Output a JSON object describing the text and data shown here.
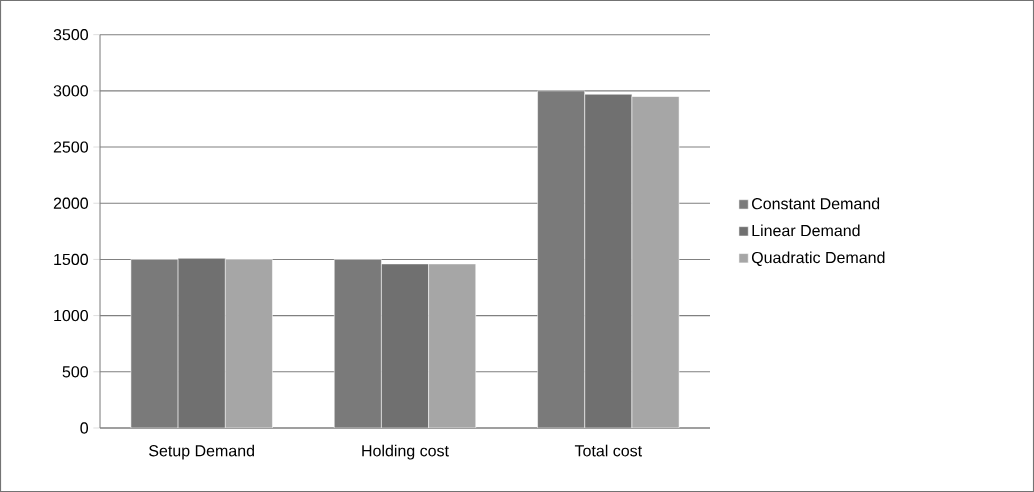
{
  "chart_data": {
    "type": "bar",
    "categories": [
      "Setup Demand",
      "Holding cost",
      "Total cost"
    ],
    "series": [
      {
        "name": "Constant Demand",
        "color": "#7a7a7a",
        "values": [
          1500,
          1500,
          3000
        ]
      },
      {
        "name": "Linear Demand",
        "color": "#707070",
        "values": [
          1510,
          1460,
          2970
        ]
      },
      {
        "name": "Quadratic Demand",
        "color": "#a6a6a6",
        "values": [
          1500,
          1460,
          2950
        ]
      }
    ],
    "ylim": [
      0,
      3500
    ],
    "yticks": [
      0,
      500,
      1000,
      1500,
      2000,
      2500,
      3000,
      3500
    ],
    "grid": "y",
    "legend": "right"
  }
}
